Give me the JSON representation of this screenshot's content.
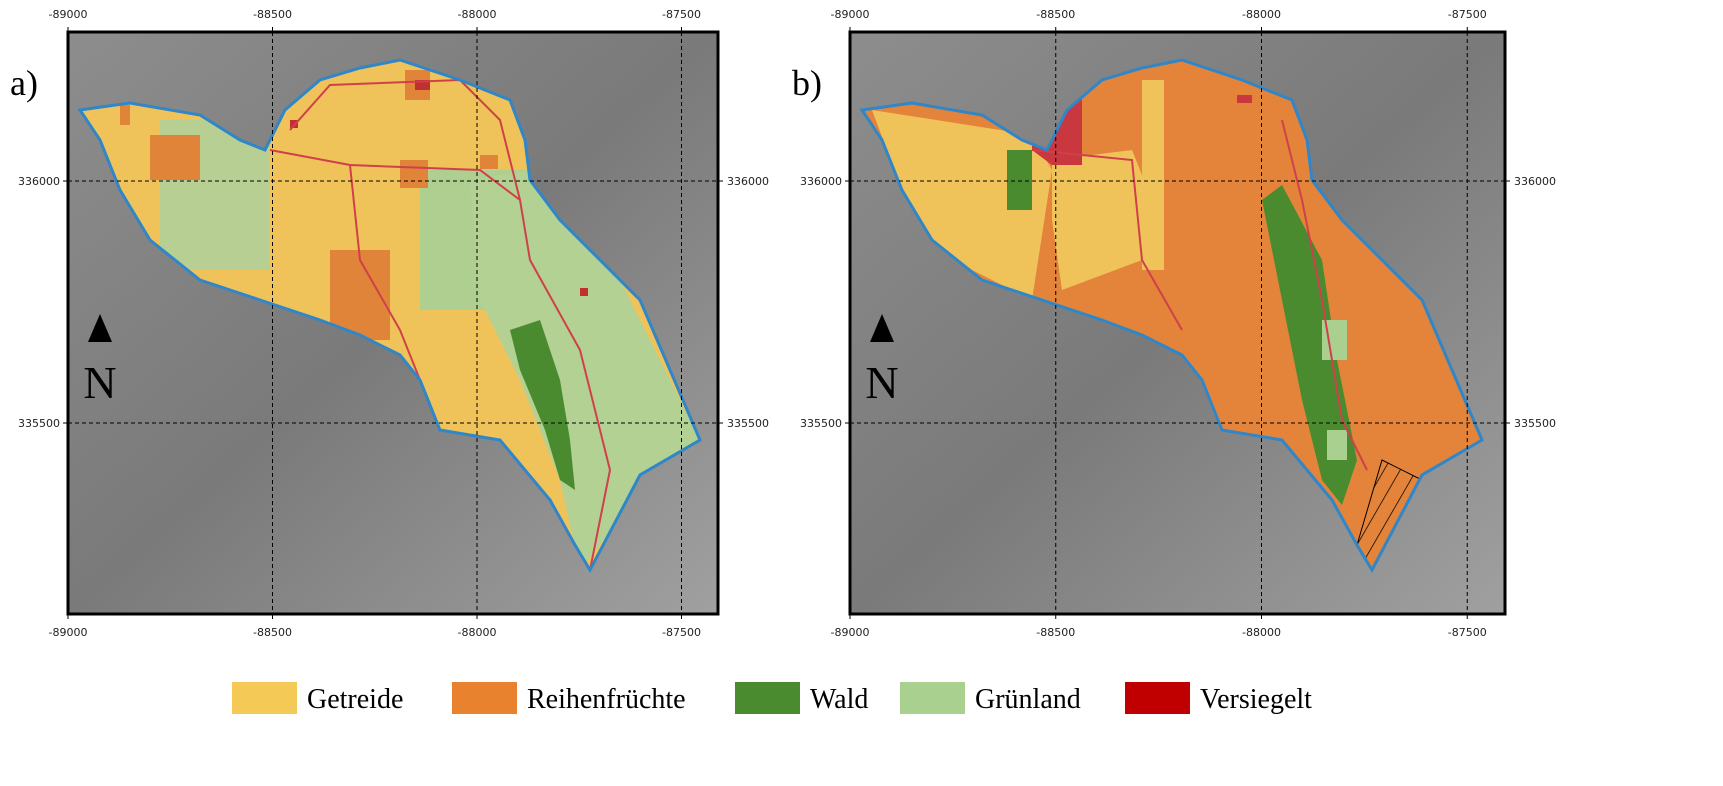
{
  "panels": [
    {
      "label": "a)",
      "north": "N",
      "xticks": [
        -89000,
        -88500,
        -88000,
        -87500
      ],
      "yticks": [
        336000,
        335500
      ]
    },
    {
      "label": "b)",
      "north": "N",
      "xticks": [
        -89000,
        -88500,
        -88000,
        -87500
      ],
      "yticks": [
        336000,
        335500
      ]
    }
  ],
  "legend": [
    {
      "label": "Getreide",
      "color": "#f5c955"
    },
    {
      "label": "Reihenfrüchte",
      "color": "#e8822e"
    },
    {
      "label": "Wald",
      "color": "#4b8b2f"
    },
    {
      "label": "Grünland",
      "color": "#a9d08e"
    },
    {
      "label": "Versiegelt",
      "color": "#c00000"
    }
  ]
}
